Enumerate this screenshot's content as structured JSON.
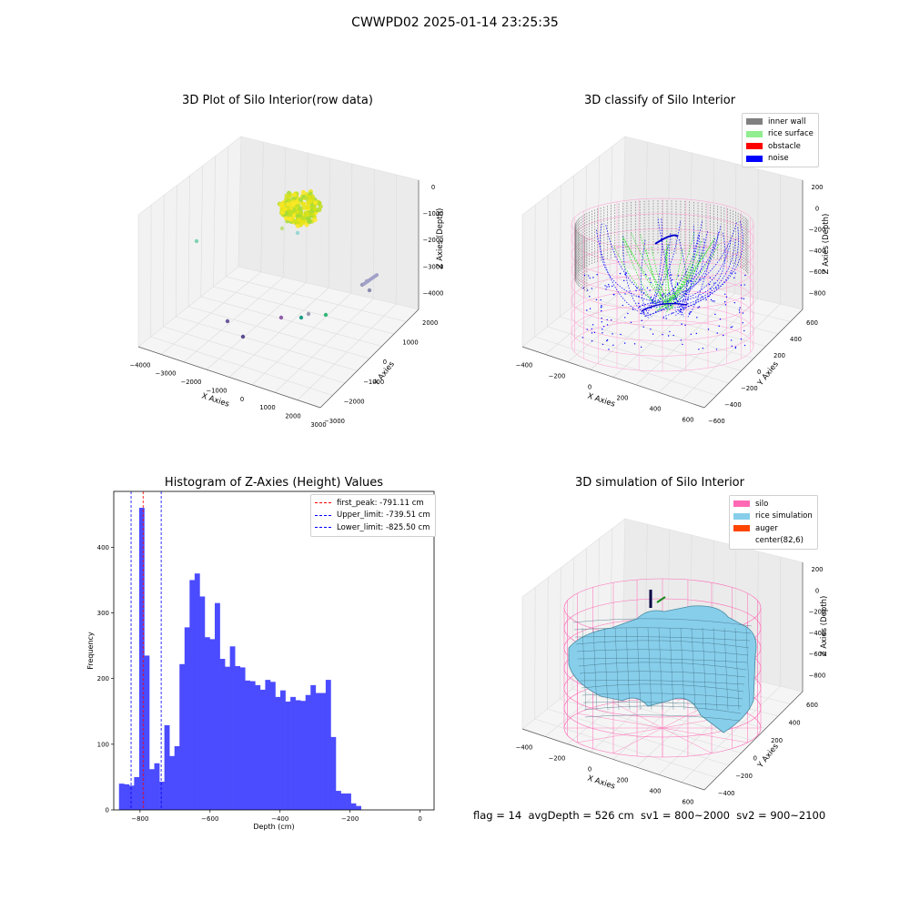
{
  "figure": {
    "suptitle": "CWWPD02 2025-01-14 23:25:35"
  },
  "footer": {
    "text": "flag = 14  avgDepth = 526 cm  sv1 = 800~2000  sv2 = 900~2100"
  },
  "chart_data": [
    {
      "type": "scatter",
      "projection": "3d",
      "title": "3D Plot of Silo Interior(row data)",
      "xlabel": "X Axies",
      "ylabel": "Y Axies",
      "zlabel": "Z Axies (Depth)",
      "x_ticks": [
        "−4000",
        "−3000",
        "−2000",
        "−1000",
        "0",
        "1000",
        "2000",
        "3000"
      ],
      "y_ticks": [
        "2000",
        "1000",
        "0",
        "−1000",
        "−2000",
        "−3000"
      ],
      "z_ticks": [
        "0",
        "−1000",
        "−2000",
        "−3000",
        "−4000"
      ],
      "description_points": "dense yellow-green cluster near top center plus scattered outliers",
      "colormap": "viridis"
    },
    {
      "type": "scatter",
      "projection": "3d",
      "title": "3D classify of Silo Interior",
      "xlabel": "X Axies",
      "ylabel": "Y Axies",
      "zlabel": "Z Axies (Depth)",
      "x_ticks": [
        "−400",
        "−200",
        "0",
        "200",
        "400",
        "600"
      ],
      "y_ticks": [
        "600",
        "400",
        "200",
        "0",
        "−200",
        "−400",
        "−600"
      ],
      "z_ticks": [
        "200",
        "0",
        "−200",
        "−400",
        "−600",
        "−800"
      ],
      "legend": [
        {
          "label": "inner wall",
          "color": "#808080"
        },
        {
          "label": "rice surface",
          "color": "#90ee90"
        },
        {
          "label": "obstacle",
          "color": "#ff0000"
        },
        {
          "label": "noise",
          "color": "#0000ff"
        }
      ]
    },
    {
      "type": "bar",
      "subtype": "histogram",
      "title": "Histogram of Z-Axies (Height) Values",
      "xlabel": "Depth (cm)",
      "ylabel": "Frequency",
      "xlim": [
        -875,
        40
      ],
      "ylim": [
        0,
        485
      ],
      "x_ticks": [
        -800,
        -600,
        -400,
        -200,
        0
      ],
      "y_ticks": [
        0,
        100,
        200,
        300,
        400
      ],
      "bin_start": -860,
      "bin_width": 14.4,
      "values": [
        40,
        39,
        37,
        50,
        460,
        235,
        62,
        71,
        43,
        129,
        82,
        97,
        222,
        278,
        350,
        360,
        325,
        263,
        260,
        315,
        230,
        218,
        249,
        219,
        217,
        197,
        196,
        190,
        183,
        198,
        195,
        172,
        182,
        165,
        172,
        167,
        166,
        175,
        190,
        178,
        178,
        198,
        111,
        29,
        25,
        25,
        10,
        6
      ],
      "bar_color": "#4b4bff",
      "vlines": [
        {
          "label": "first_peak: -791.11 cm",
          "x": -791.11,
          "color": "#ff0000"
        },
        {
          "label": "Upper_limit: -739.51 cm",
          "x": -739.51,
          "color": "#0000ff"
        },
        {
          "label": "Lower_limit: -825.50 cm",
          "x": -825.5,
          "color": "#0000ff"
        }
      ]
    },
    {
      "type": "area",
      "projection": "3d",
      "title": "3D simulation of Silo Interior",
      "xlabel": "X Axies",
      "ylabel": "Y Axies",
      "zlabel": "Z Axies (Depth)",
      "x_ticks": [
        "−400",
        "−200",
        "0",
        "200",
        "400",
        "600"
      ],
      "y_ticks": [
        "600",
        "400",
        "200",
        "0",
        "−200",
        "−400"
      ],
      "z_ticks": [
        "200",
        "0",
        "−200",
        "−400",
        "−600",
        "−800"
      ],
      "legend": [
        {
          "label": "silo",
          "color": "#ff69b4"
        },
        {
          "label": "rice simulation",
          "color": "#87ceeb"
        },
        {
          "label": "auger",
          "color": "#ff4500"
        },
        {
          "label": "center(82,6)",
          "color": "#ffffff"
        }
      ]
    }
  ]
}
